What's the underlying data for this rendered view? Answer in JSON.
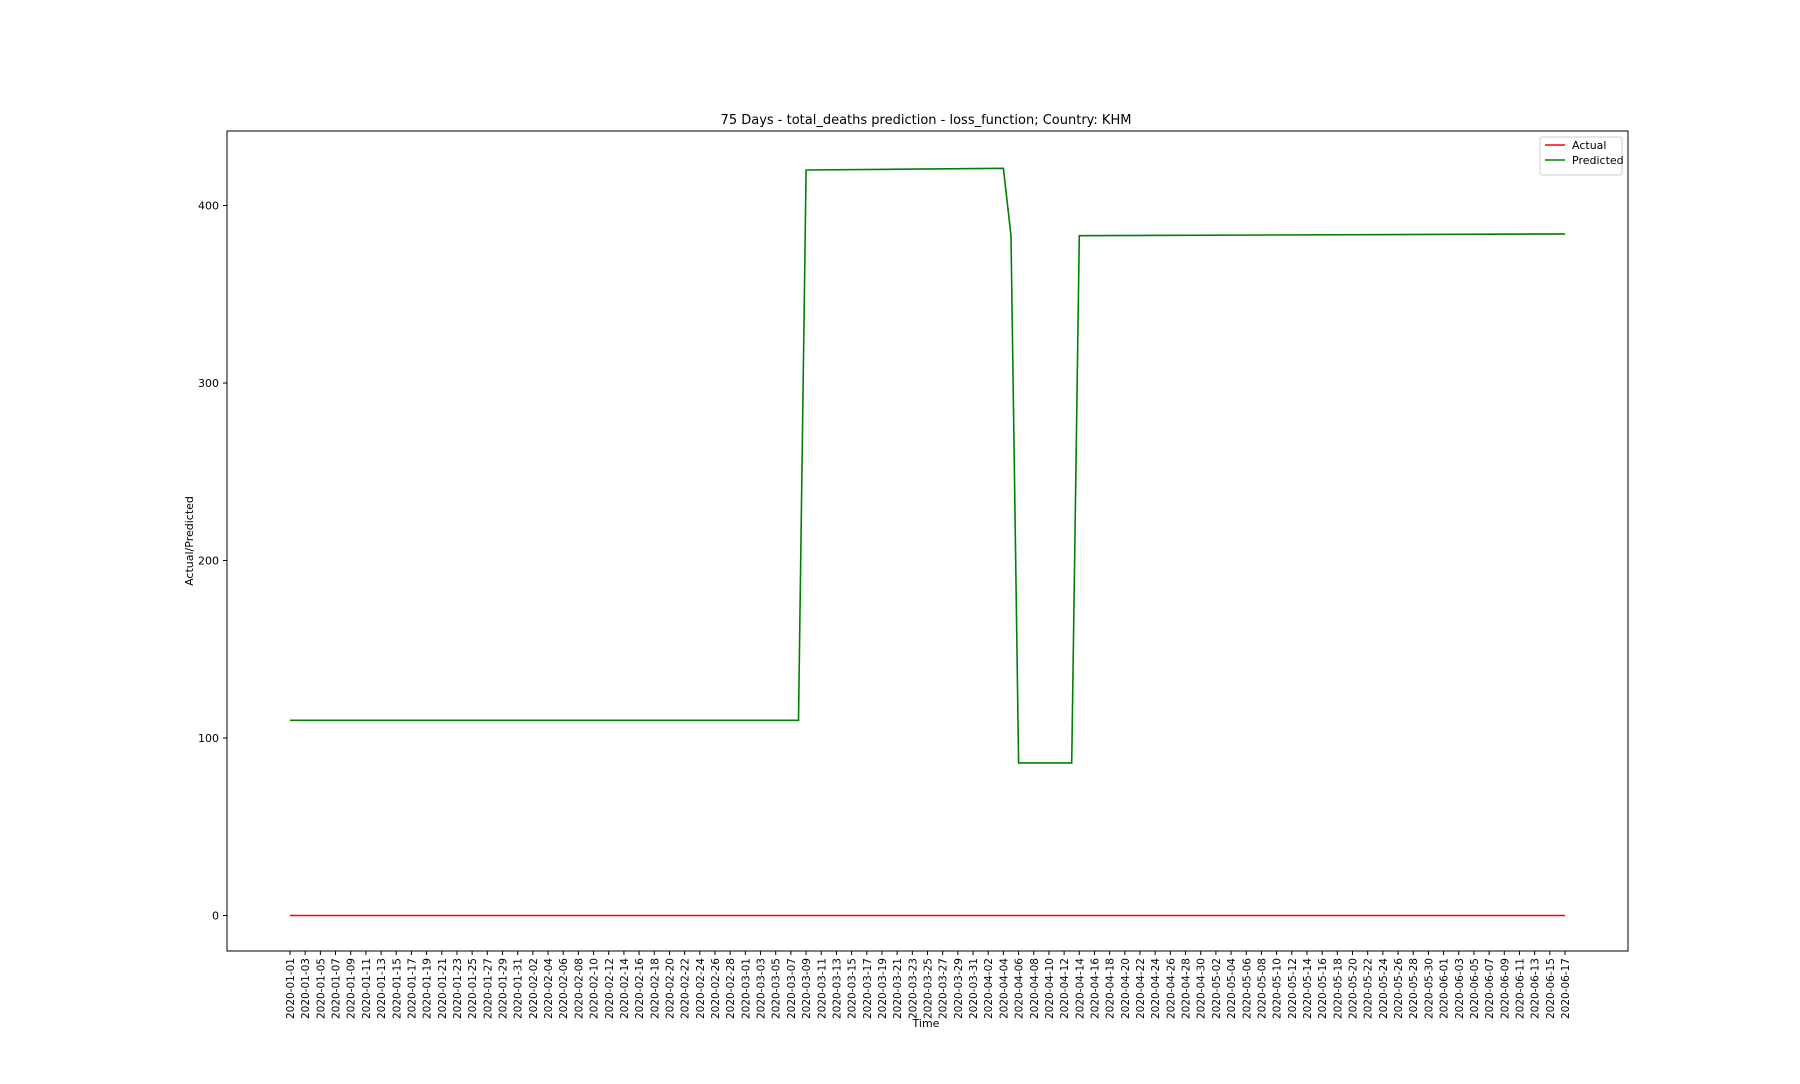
{
  "chart_data": {
    "type": "line",
    "title": "75 Days - total_deaths prediction - loss_function; Country: KHM",
    "xlabel": "Time",
    "ylabel": "Actual/Predicted",
    "x_start": "2020-01-01",
    "x_end": "2020-06-17",
    "x_tick_every_days": 2,
    "ylim": [
      -20,
      442
    ],
    "yticks": [
      0,
      100,
      200,
      300,
      400
    ],
    "grid": false,
    "legend": "upper-right",
    "series": [
      {
        "name": "Actual",
        "color": "#ff0000",
        "points": [
          [
            "2020-01-01",
            0
          ],
          [
            "2020-06-17",
            0
          ]
        ]
      },
      {
        "name": "Predicted",
        "color": "#008000",
        "points": [
          [
            "2020-01-01",
            110
          ],
          [
            "2020-03-08",
            110
          ],
          [
            "2020-03-09",
            420
          ],
          [
            "2020-04-04",
            421
          ],
          [
            "2020-04-05",
            383
          ],
          [
            "2020-04-06",
            86
          ],
          [
            "2020-04-13",
            86
          ],
          [
            "2020-04-14",
            383
          ],
          [
            "2020-06-17",
            384
          ]
        ]
      }
    ]
  }
}
